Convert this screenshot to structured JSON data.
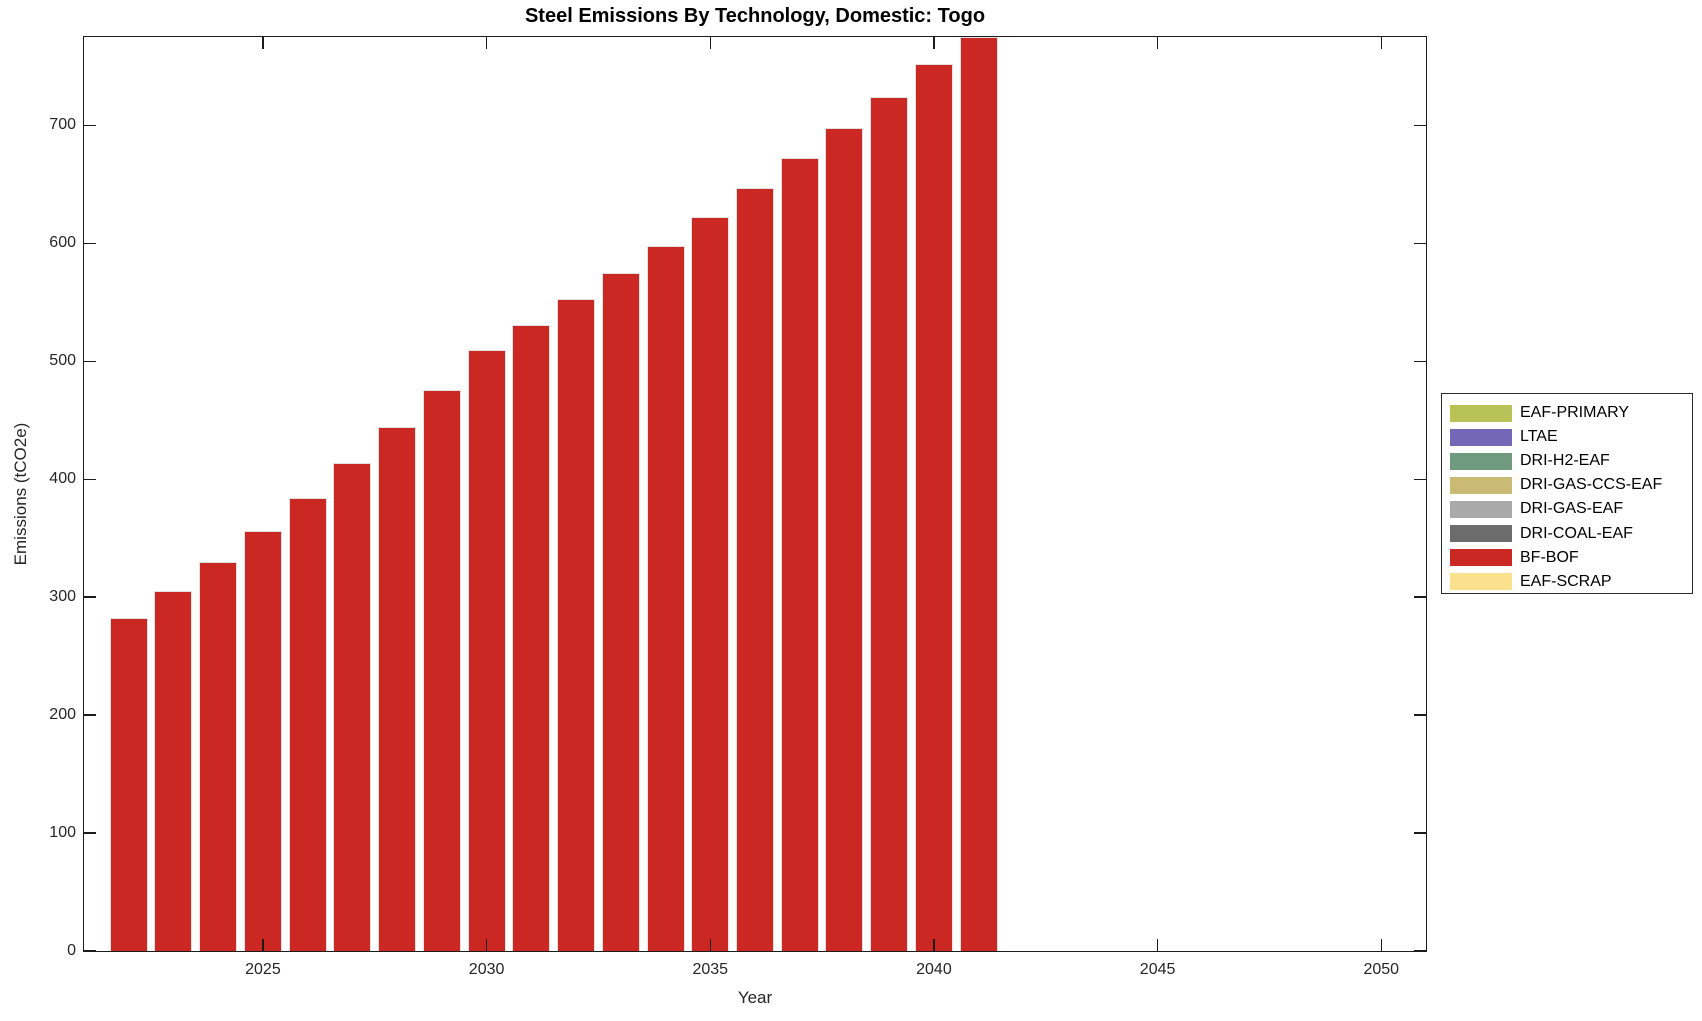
{
  "chart_data": {
    "type": "bar",
    "title": "Steel Emissions By Technology, Domestic: Togo",
    "xlabel": "Year",
    "ylabel": "Emissions (tCO2e)",
    "xlim": [
      2021,
      2051
    ],
    "ylim": [
      0,
      775
    ],
    "xticks": [
      2025,
      2030,
      2035,
      2040,
      2045,
      2050
    ],
    "yticks": [
      0,
      100,
      200,
      300,
      400,
      500,
      600,
      700
    ],
    "grid": false,
    "bar_width_years": 0.85,
    "series": [
      {
        "name": "BF-BOF",
        "color": "#cc2823",
        "x": [
          2022,
          2023,
          2024,
          2025,
          2026,
          2027,
          2028,
          2029,
          2030,
          2031,
          2032,
          2033,
          2034,
          2035,
          2036,
          2037,
          2038,
          2039,
          2040,
          2041
        ],
        "values": [
          282,
          305,
          330,
          356,
          384,
          414,
          444,
          476,
          510,
          531,
          553,
          575,
          598,
          622,
          647,
          672,
          698,
          724,
          752,
          780
        ]
      }
    ],
    "legend": {
      "position": "right",
      "entries": [
        {
          "label": "EAF-PRIMARY",
          "color": "#b9c257"
        },
        {
          "label": "LTAE",
          "color": "#7467b8"
        },
        {
          "label": "DRI-H2-EAF",
          "color": "#6f9a7d"
        },
        {
          "label": "DRI-GAS-CCS-EAF",
          "color": "#c9ba76"
        },
        {
          "label": "DRI-GAS-EAF",
          "color": "#a9a9a9"
        },
        {
          "label": "DRI-COAL-EAF",
          "color": "#6c6c6c"
        },
        {
          "label": "BF-BOF",
          "color": "#cc2823"
        },
        {
          "label": "EAF-SCRAP",
          "color": "#fbe08d"
        }
      ]
    }
  }
}
